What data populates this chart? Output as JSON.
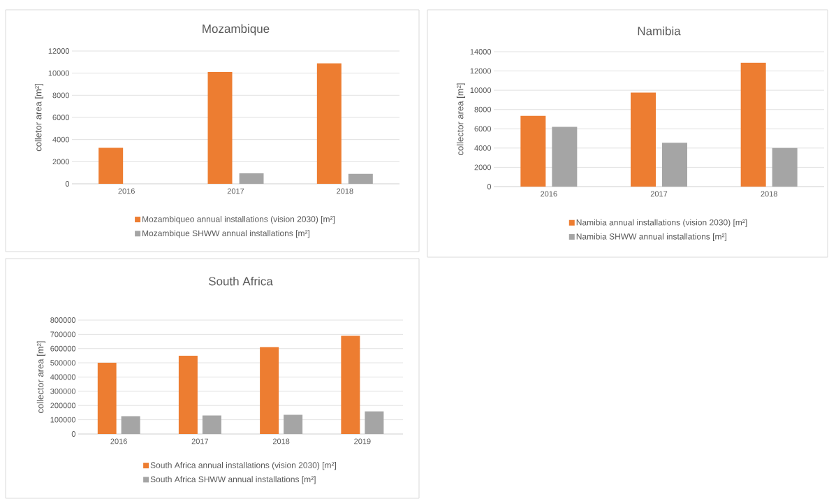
{
  "chart_data": [
    {
      "type": "bar",
      "title": "Mozambique",
      "ylabel": "colletor area [m²]",
      "categories": [
        "2016",
        "2017",
        "2018"
      ],
      "series": [
        {
          "name": "Mozambiqueo annual installations (vision 2030) [m²]",
          "color": "#ed7d31",
          "values": [
            3250,
            10100,
            10900
          ]
        },
        {
          "name": "Mozambique SHWW annual installations [m²]",
          "color": "#a5a5a5",
          "values": [
            null,
            950,
            900
          ]
        }
      ],
      "ylim": [
        0,
        12000
      ],
      "yticks": [
        0,
        2000,
        4000,
        6000,
        8000,
        10000,
        12000
      ],
      "grid": "y",
      "legend": "bottom"
    },
    {
      "type": "bar",
      "title": "Namibia",
      "ylabel": "collector area [m²]",
      "categories": [
        "2016",
        "2017",
        "2018"
      ],
      "series": [
        {
          "name": "Namibia annual installations (vision 2030) [m²]",
          "color": "#ed7d31",
          "values": [
            7350,
            9750,
            12850
          ]
        },
        {
          "name": "Namibia SHWW annual installations [m²]",
          "color": "#a5a5a5",
          "values": [
            6200,
            4550,
            4000
          ]
        }
      ],
      "ylim": [
        0,
        14000
      ],
      "yticks": [
        0,
        2000,
        4000,
        6000,
        8000,
        10000,
        12000,
        14000
      ],
      "grid": "y",
      "legend": "bottom"
    },
    {
      "type": "bar",
      "title": "South Africa",
      "ylabel": "collector area [m²]",
      "categories": [
        "2016",
        "2017",
        "2018",
        "2019"
      ],
      "series": [
        {
          "name": "South Africa annual installations (vision 2030) [m²]",
          "color": "#ed7d31",
          "values": [
            500000,
            550000,
            610000,
            690000
          ]
        },
        {
          "name": "South Africa SHWW annual installations [m²]",
          "color": "#a5a5a5",
          "values": [
            125000,
            130000,
            135000,
            160000
          ]
        }
      ],
      "ylim": [
        0,
        800000
      ],
      "yticks": [
        0,
        100000,
        200000,
        300000,
        400000,
        500000,
        600000,
        700000,
        800000
      ],
      "grid": "y",
      "legend": "bottom"
    }
  ]
}
